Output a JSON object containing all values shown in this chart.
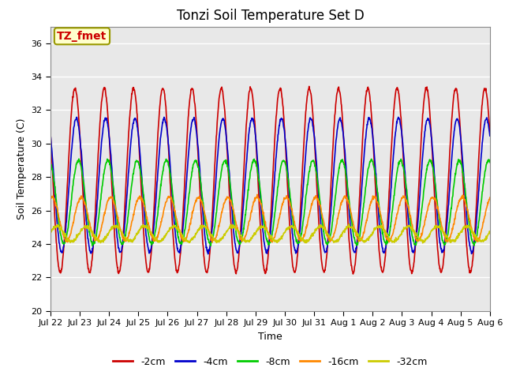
{
  "title": "Tonzi Soil Temperature Set D",
  "xlabel": "Time",
  "ylabel": "Soil Temperature (C)",
  "ylim": [
    20,
    37
  ],
  "yticks": [
    20,
    22,
    24,
    26,
    28,
    30,
    32,
    34,
    36
  ],
  "series_colors": {
    "-2cm": "#cc0000",
    "-4cm": "#0000cc",
    "-8cm": "#00cc00",
    "-16cm": "#ff8800",
    "-32cm": "#cccc00"
  },
  "series_order": [
    "-2cm",
    "-4cm",
    "-8cm",
    "-16cm",
    "-32cm"
  ],
  "annotation_text": "TZ_fmet",
  "annotation_fg": "#cc0000",
  "annotation_bg": "#ffffcc",
  "annotation_border": "#999900",
  "background_color": "#e8e8e8",
  "title_fontsize": 12,
  "label_fontsize": 9,
  "tick_fontsize": 8,
  "legend_fontsize": 9,
  "linewidth": 1.2,
  "n_points_per_day": 96,
  "n_days": 15,
  "xtick_labels": [
    "Jul 22",
    "Jul 23",
    "Jul 24",
    "Jul 25",
    "Jul 26",
    "Jul 27",
    "Jul 28",
    "Jul 29",
    "Jul 30",
    "Jul 31",
    "Aug 1",
    "Aug 2",
    "Aug 3",
    "Aug 4",
    "Aug 5",
    "Aug 6"
  ],
  "depth_params": {
    "-2cm": {
      "mean": 27.8,
      "amp": 5.5,
      "phase_lag_days": 0.0,
      "trend": 0.0
    },
    "-4cm": {
      "mean": 27.5,
      "amp": 4.0,
      "phase_lag_days": 0.05,
      "trend": 0.0
    },
    "-8cm": {
      "mean": 26.5,
      "amp": 2.5,
      "phase_lag_days": 0.12,
      "trend": 0.0
    },
    "-16cm": {
      "mean": 25.5,
      "amp": 1.3,
      "phase_lag_days": 0.22,
      "trend": 0.0
    },
    "-32cm": {
      "mean": 24.6,
      "amp": 0.45,
      "phase_lag_days": 0.38,
      "trend": 0.0
    }
  }
}
